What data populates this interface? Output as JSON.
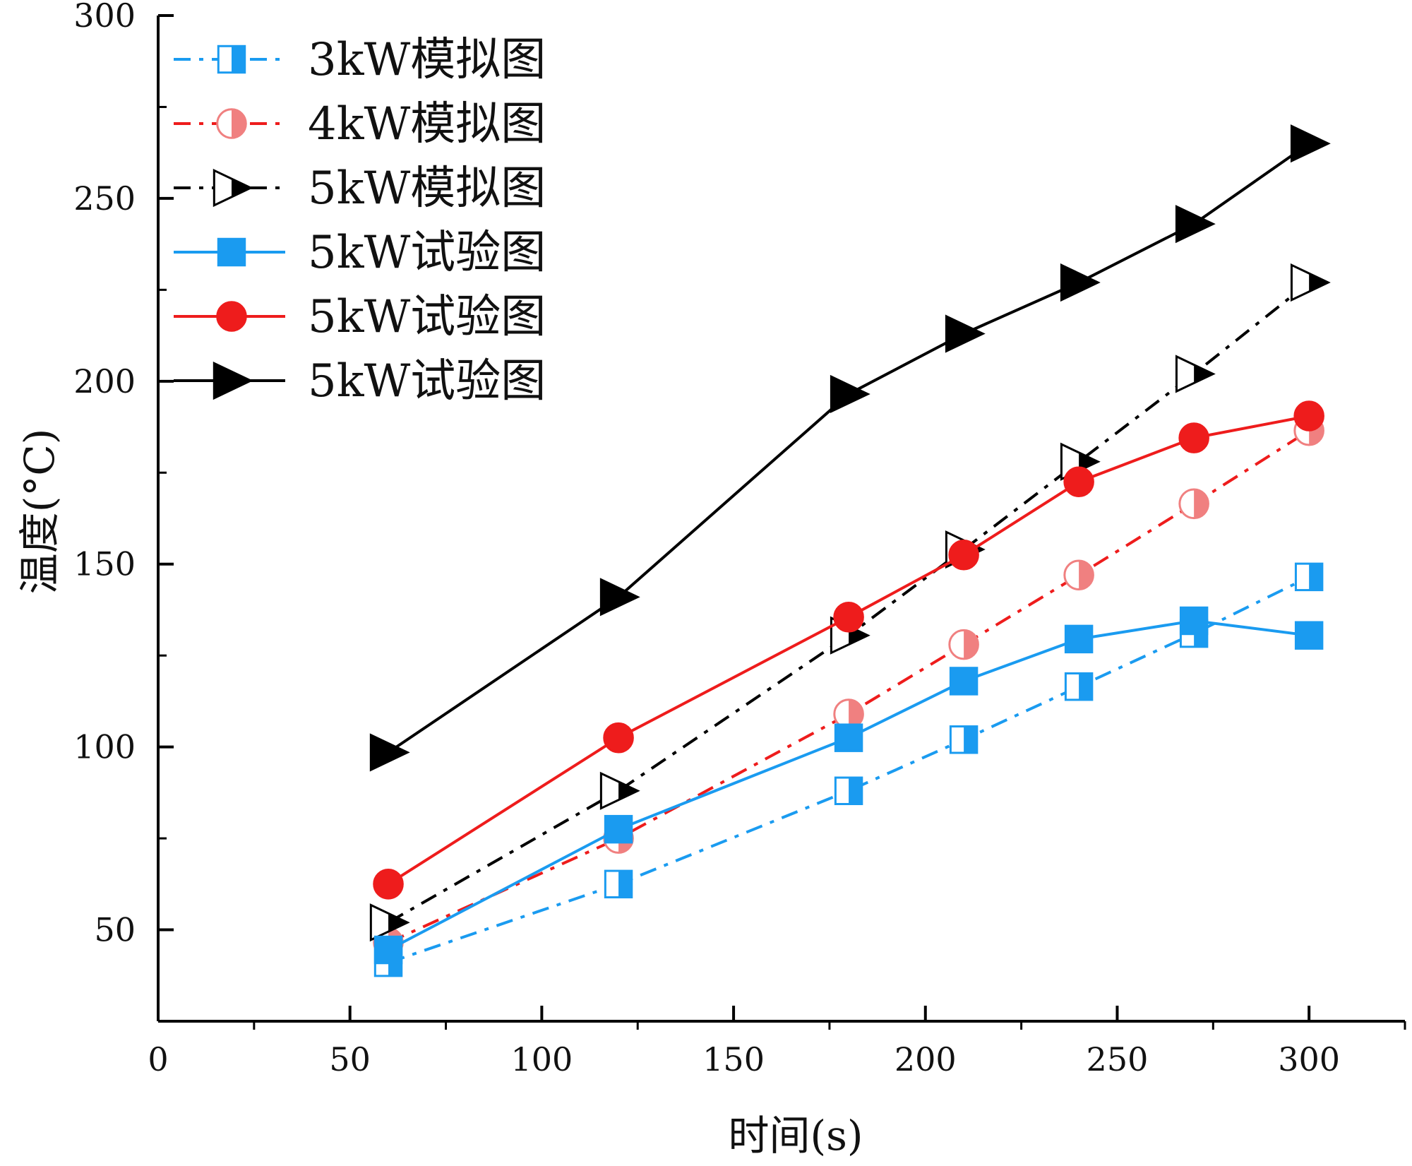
{
  "chart_data": {
    "type": "line",
    "xlabel": "时间(s)",
    "ylabel": "温度(°C)",
    "xlim": [
      0,
      325
    ],
    "ylim": [
      25,
      300
    ],
    "xticks": [
      0,
      50,
      100,
      150,
      200,
      250,
      300
    ],
    "xminor": [
      25,
      75,
      125,
      175,
      225,
      275,
      325
    ],
    "yticks": [
      50,
      100,
      150,
      200,
      250,
      300
    ],
    "yminor": [
      75,
      125,
      175,
      225,
      275
    ],
    "x": [
      60,
      120,
      180,
      210,
      240,
      270,
      300
    ],
    "series": [
      {
        "name": "3kW模拟图",
        "color": "#1a9bf0",
        "dash": "dashdot",
        "marker": "square",
        "fill": "half",
        "values": [
          41,
          62.5,
          88,
          102,
          116.5,
          131,
          146.5
        ]
      },
      {
        "name": "4kW模拟图",
        "color": "#ee1c1c",
        "dash": "dashdot",
        "marker": "circle",
        "fill": "half",
        "values": [
          46.5,
          75,
          109,
          128,
          147,
          166.5,
          186.5
        ]
      },
      {
        "name": "5kW模拟图",
        "color": "#000000",
        "dash": "dashdot",
        "marker": "triangle",
        "fill": "half",
        "values": [
          52,
          88,
          130.5,
          154,
          178,
          202,
          227
        ]
      },
      {
        "name": "5kW试验图",
        "color": "#1a9bf0",
        "dash": "solid",
        "marker": "square",
        "fill": "full",
        "values": [
          44.5,
          77.5,
          102.5,
          118,
          129.5,
          134.5,
          130.5
        ]
      },
      {
        "name": "5kW试验图",
        "color": "#ee1c1c",
        "dash": "solid",
        "marker": "circle",
        "fill": "full",
        "values": [
          62.5,
          102.5,
          135.5,
          152.5,
          172.5,
          184.5,
          190.5
        ]
      },
      {
        "name": "5kW试验图",
        "color": "#000000",
        "dash": "solid",
        "marker": "triangle",
        "fill": "full",
        "values": [
          98.5,
          141,
          196.5,
          213,
          227,
          243,
          265
        ]
      }
    ],
    "legend": "top-left"
  }
}
